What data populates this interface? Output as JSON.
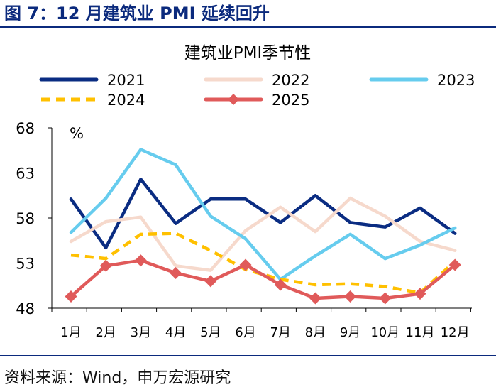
{
  "figure_title": "图 7：12 月建筑业 PMI 延续回升",
  "source": "资料来源：Wind，申万宏源研究",
  "chart_data": {
    "type": "line",
    "title": "建筑业PMI季节性",
    "unit": "%",
    "categories": [
      "1月",
      "2月",
      "3月",
      "4月",
      "5月",
      "6月",
      "7月",
      "8月",
      "9月",
      "10月",
      "11月",
      "12月"
    ],
    "ylim": [
      48,
      68
    ],
    "yticks": [
      "48",
      "53",
      "58",
      "63",
      "68"
    ],
    "legend_position": "top",
    "grid": false,
    "series": [
      {
        "name": "2021",
        "color": "#0a2c82",
        "dashed": false,
        "markers": false,
        "values": [
          60.1,
          54.7,
          62.3,
          57.4,
          60.1,
          60.1,
          57.5,
          60.5,
          57.5,
          57.0,
          59.1,
          56.3
        ]
      },
      {
        "name": "2022",
        "color": "#f6d9cc",
        "dashed": false,
        "markers": false,
        "values": [
          55.4,
          57.6,
          58.1,
          52.7,
          52.2,
          56.6,
          59.2,
          56.5,
          60.2,
          58.2,
          55.4,
          54.4
        ]
      },
      {
        "name": "2023",
        "color": "#66ccee",
        "dashed": false,
        "markers": false,
        "values": [
          56.4,
          60.2,
          65.6,
          63.9,
          58.2,
          55.7,
          51.2,
          53.8,
          56.2,
          53.5,
          55.0,
          56.9
        ]
      },
      {
        "name": "2024",
        "color": "#ffc000",
        "dashed": true,
        "markers": false,
        "values": [
          53.9,
          53.5,
          56.2,
          56.3,
          54.4,
          52.3,
          51.2,
          50.6,
          50.7,
          50.4,
          49.7,
          53.2
        ]
      },
      {
        "name": "2025",
        "color": "#e05a5a",
        "dashed": false,
        "markers": true,
        "values": [
          49.3,
          52.7,
          53.3,
          51.9,
          51.0,
          52.8,
          50.6,
          49.1,
          49.3,
          49.1,
          49.6,
          52.8
        ]
      }
    ]
  }
}
